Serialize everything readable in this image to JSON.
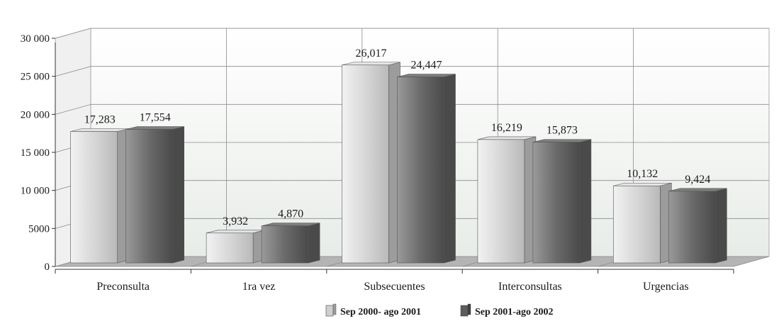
{
  "chart_data": {
    "type": "bar",
    "title": "",
    "xlabel": "",
    "ylabel": "",
    "categories": [
      "Preconsulta",
      "1ra vez",
      "Subsecuentes",
      "Interconsultas",
      "Urgencias"
    ],
    "series": [
      {
        "name": "Sep 2000- ago 2001",
        "values": [
          17283,
          3932,
          26017,
          16219,
          10132
        ],
        "labels": [
          "17,283",
          "3,932",
          "26,017",
          "16,219",
          "10,132"
        ],
        "color": "#d2d2d2"
      },
      {
        "name": "Sep 2001-ago 2002",
        "values": [
          17554,
          4870,
          24447,
          15873,
          9424
        ],
        "labels": [
          "17,554",
          "4,870",
          "24,447",
          "15,873",
          "9,424"
        ],
        "color": "#6e6e6e"
      }
    ],
    "ylim": [
      0,
      30000
    ],
    "yticks": [
      0,
      5000,
      10000,
      15000,
      20000,
      25000,
      30000
    ],
    "ytick_labels": [
      "0",
      "5000",
      "10 000",
      "15 000",
      "20 000",
      "25 000",
      "30 000"
    ],
    "grid": true,
    "legend_position": "bottom-center",
    "style": "3d"
  }
}
